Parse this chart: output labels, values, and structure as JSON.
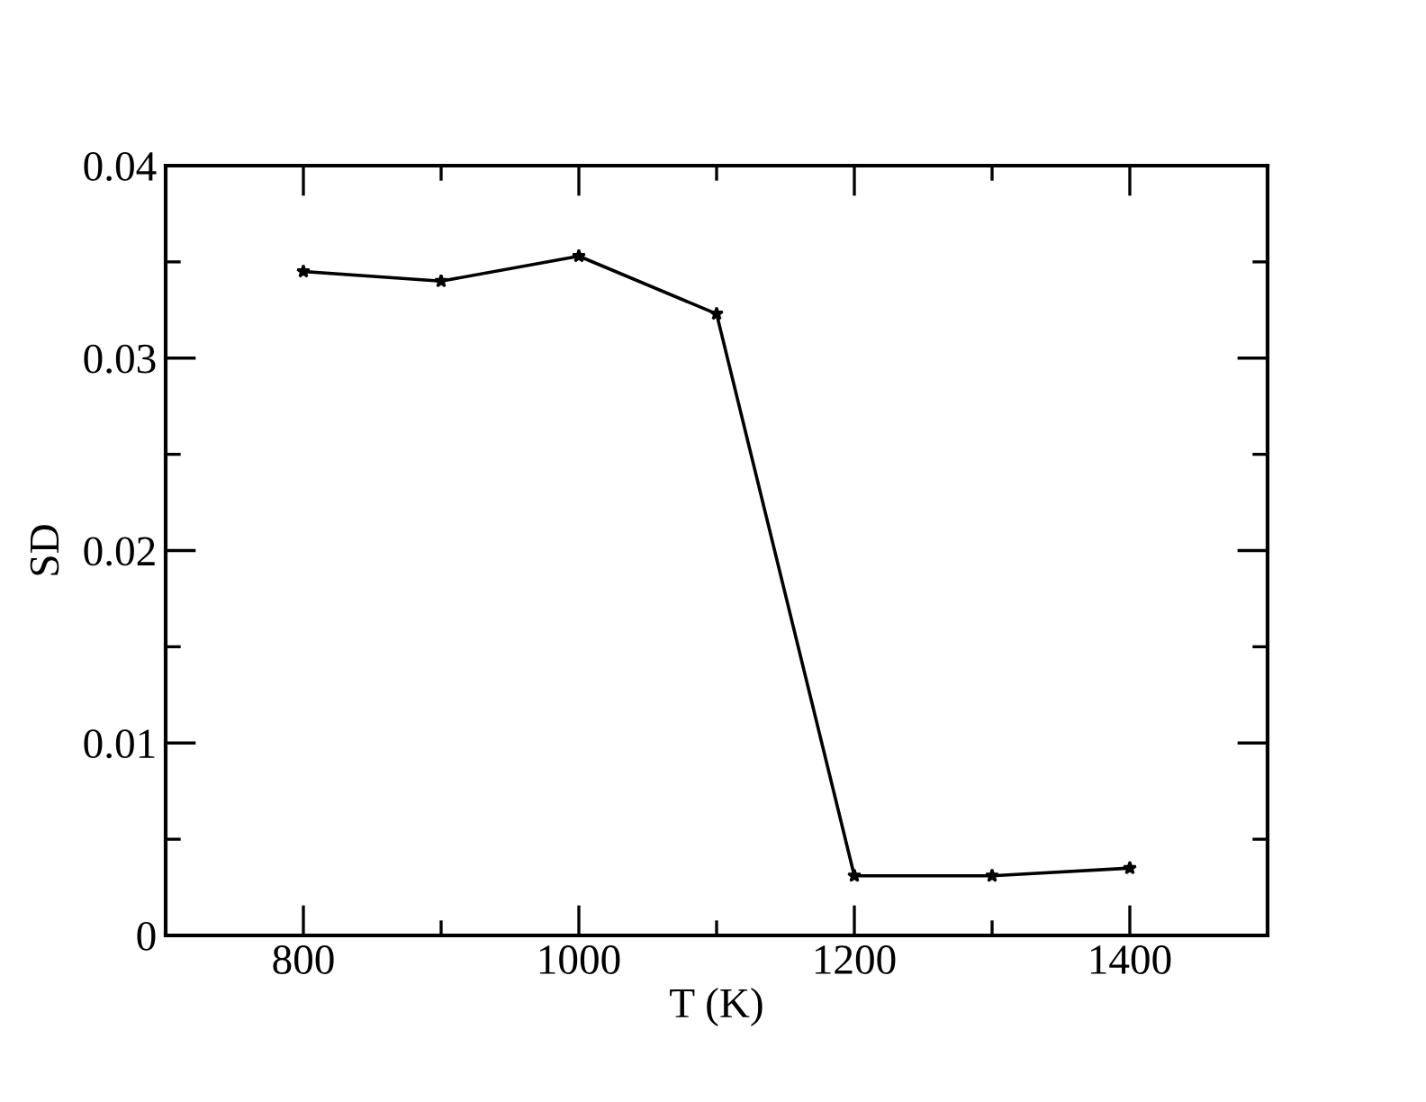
{
  "chart_data": {
    "type": "line",
    "xlabel": "T (K)",
    "ylabel": "SD",
    "x": [
      800,
      900,
      1000,
      1100,
      1200,
      1300,
      1400
    ],
    "series": [
      {
        "color": "#000000",
        "values": [
          0.0345,
          0.034,
          0.0353,
          0.0323,
          0.0031,
          0.0031,
          0.0035
        ]
      }
    ],
    "marker": "star",
    "line_style": "solid",
    "xlim": [
      700,
      1500
    ],
    "ylim": [
      0,
      0.04
    ],
    "xticks": [
      800,
      {
        "value": 900,
        "label": null
      },
      1000,
      {
        "value": 1100,
        "label": null
      },
      1200,
      {
        "value": 1300,
        "label": null
      },
      1400
    ],
    "yticks": [
      0,
      {
        "value": 0.005,
        "label": null
      },
      0.01,
      {
        "value": 0.015,
        "label": null
      },
      0.02,
      {
        "value": 0.025,
        "label": null
      },
      0.03,
      {
        "value": 0.035,
        "label": null
      },
      0.04
    ],
    "grid": false,
    "legend": false
  }
}
